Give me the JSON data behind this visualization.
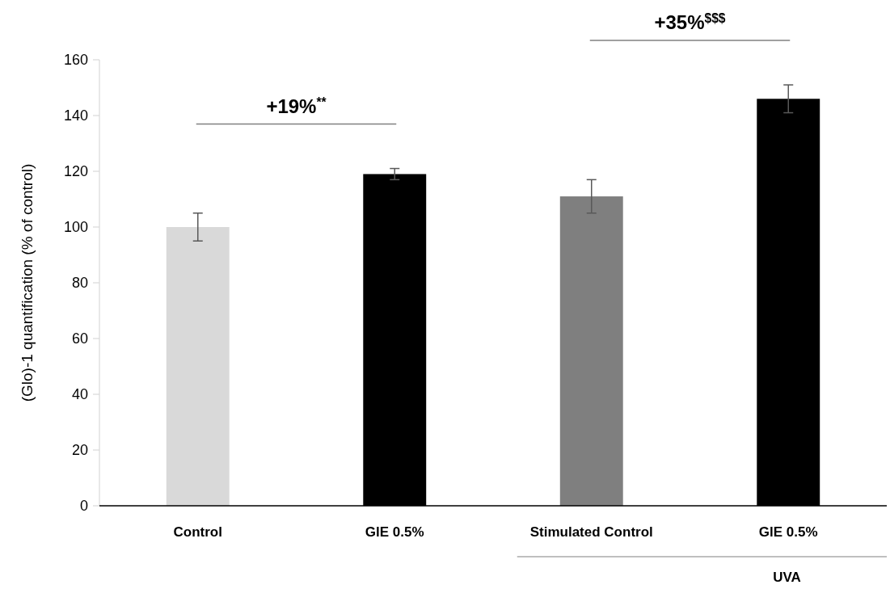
{
  "chart_data": {
    "type": "bar",
    "ylabel": "(Glo)-1 quantification (% of control)",
    "categories": [
      "Control",
      "GlE 0.5%",
      "Stimulated Control",
      "GlE 0.5%"
    ],
    "values": [
      100,
      119,
      111,
      146
    ],
    "colors": [
      "#d9d9d9",
      "#000000",
      "#7f7f7f",
      "#000000"
    ],
    "errors": [
      5,
      2,
      6,
      5
    ],
    "ylim": [
      0,
      160
    ],
    "yticks": [
      0,
      20,
      40,
      60,
      80,
      100,
      120,
      140,
      160
    ],
    "grid": false,
    "annotations": [
      "+19%$^{**}$",
      "+35%$^{$$$}$",
      "UVA"
    ]
  }
}
